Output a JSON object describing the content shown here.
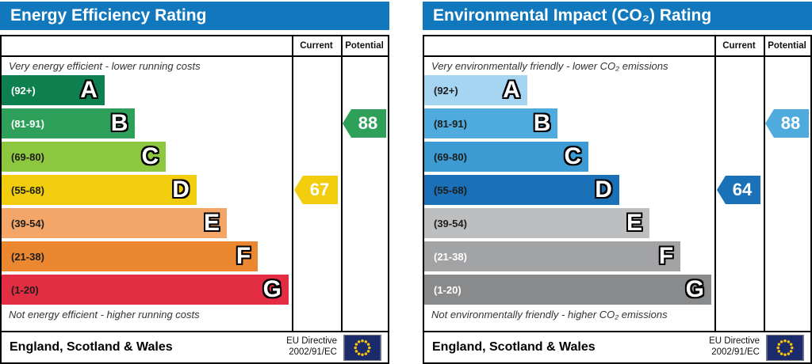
{
  "colors": {
    "header_blue": "#1278be",
    "eu_flag_bg": "#1b2a6b",
    "eu_flag_star": "#f7c608"
  },
  "charts": [
    {
      "id": "energy-efficiency",
      "title": "Energy Efficiency Rating",
      "current_label": "Current",
      "potential_label": "Potential",
      "top_caption": "Very energy efficient - lower running costs",
      "bottom_caption": "Not energy efficient - higher running costs",
      "footer_region": "England, Scotland & Wales",
      "directive_line1": "EU Directive",
      "directive_line2": "2002/91/EC",
      "bands": [
        {
          "letter": "A",
          "range": "(92+)",
          "color": "#0e8050",
          "label_color": "#ffffff",
          "width_pct": 35.5
        },
        {
          "letter": "B",
          "range": "(81-91)",
          "color": "#2ea05a",
          "label_color": "#ffffff",
          "width_pct": 46.0
        },
        {
          "letter": "C",
          "range": "(69-80)",
          "color": "#8dc63f",
          "label_color": "#1d1d1b",
          "width_pct": 56.6
        },
        {
          "letter": "D",
          "range": "(55-68)",
          "color": "#f2cd0e",
          "label_color": "#1d1d1b",
          "width_pct": 67.2
        },
        {
          "letter": "E",
          "range": "(39-54)",
          "color": "#f3a668",
          "label_color": "#1d1d1b",
          "width_pct": 77.6
        },
        {
          "letter": "F",
          "range": "(21-38)",
          "color": "#ec8731",
          "label_color": "#1d1d1b",
          "width_pct": 88.3
        },
        {
          "letter": "G",
          "range": "(1-20)",
          "color": "#e22d43",
          "label_color": "#1d1d1b",
          "width_pct": 98.9
        }
      ],
      "current": {
        "value": "67",
        "band": "D",
        "color": "#f2cd0e"
      },
      "potential": {
        "value": "88",
        "band": "B",
        "color": "#2ea05a"
      }
    },
    {
      "id": "environmental-impact",
      "title": "Environmental Impact (CO₂) Rating",
      "current_label": "Current",
      "potential_label": "Potential",
      "top_caption": "Very environmentally friendly - lower CO₂ emissions",
      "bottom_caption": "Not environmentally friendly - higher CO₂ emissions",
      "footer_region": "England, Scotland & Wales",
      "directive_line1": "EU Directive",
      "directive_line2": "2002/91/EC",
      "bands": [
        {
          "letter": "A",
          "range": "(92+)",
          "color": "#a5d5f0",
          "label_color": "#1d1d1b",
          "width_pct": 35.5
        },
        {
          "letter": "B",
          "range": "(81-91)",
          "color": "#4faade",
          "label_color": "#1d1d1b",
          "width_pct": 46.0
        },
        {
          "letter": "C",
          "range": "(69-80)",
          "color": "#3c9bd3",
          "label_color": "#1d1d1b",
          "width_pct": 56.6
        },
        {
          "letter": "D",
          "range": "(55-68)",
          "color": "#1b71b8",
          "label_color": "#1d1d1b",
          "width_pct": 67.2
        },
        {
          "letter": "E",
          "range": "(39-54)",
          "color": "#bdbebf",
          "label_color": "#1d1d1b",
          "width_pct": 77.6
        },
        {
          "letter": "F",
          "range": "(21-38)",
          "color": "#a2a3a5",
          "label_color": "#ffffff",
          "width_pct": 88.3
        },
        {
          "letter": "G",
          "range": "(1-20)",
          "color": "#898a8c",
          "label_color": "#ffffff",
          "width_pct": 98.9
        }
      ],
      "current": {
        "value": "64",
        "band": "D",
        "color": "#1b71b8"
      },
      "potential": {
        "value": "88",
        "band": "B",
        "color": "#4faade"
      }
    }
  ],
  "chart_data": [
    {
      "type": "bar",
      "title": "Energy Efficiency Rating",
      "categories": [
        "A (92+)",
        "B (81-91)",
        "C (69-80)",
        "D (55-68)",
        "E (39-54)",
        "F (21-38)",
        "G (1-20)"
      ],
      "bar_lengths_pct": [
        35.5,
        46.0,
        56.6,
        67.2,
        77.6,
        88.3,
        98.9
      ],
      "series": [
        {
          "name": "Current",
          "values": [
            67
          ],
          "band": "D"
        },
        {
          "name": "Potential",
          "values": [
            88
          ],
          "band": "B"
        }
      ],
      "top_caption": "Very energy efficient - lower running costs",
      "bottom_caption": "Not energy efficient - higher running costs",
      "region": "England, Scotland & Wales",
      "directive": "EU Directive 2002/91/EC"
    },
    {
      "type": "bar",
      "title": "Environmental Impact (CO₂) Rating",
      "categories": [
        "A (92+)",
        "B (81-91)",
        "C (69-80)",
        "D (55-68)",
        "E (39-54)",
        "F (21-38)",
        "G (1-20)"
      ],
      "bar_lengths_pct": [
        35.5,
        46.0,
        56.6,
        67.2,
        77.6,
        88.3,
        98.9
      ],
      "series": [
        {
          "name": "Current",
          "values": [
            64
          ],
          "band": "D"
        },
        {
          "name": "Potential",
          "values": [
            88
          ],
          "band": "B"
        }
      ],
      "top_caption": "Very environmentally friendly - lower CO₂ emissions",
      "bottom_caption": "Not environmentally friendly - higher CO₂ emissions",
      "region": "England, Scotland & Wales",
      "directive": "EU Directive 2002/91/EC"
    }
  ]
}
